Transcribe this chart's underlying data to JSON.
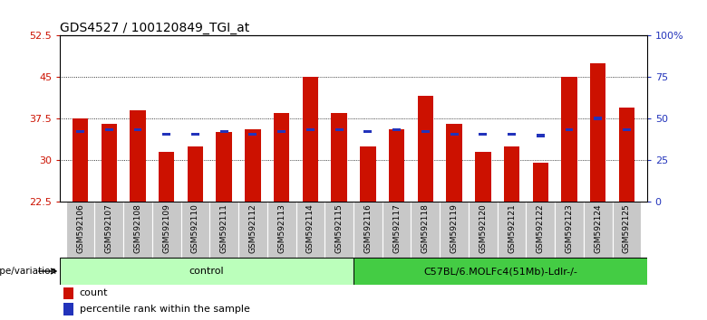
{
  "title": "GDS4527 / 100120849_TGI_at",
  "samples": [
    "GSM592106",
    "GSM592107",
    "GSM592108",
    "GSM592109",
    "GSM592110",
    "GSM592111",
    "GSM592112",
    "GSM592113",
    "GSM592114",
    "GSM592115",
    "GSM592116",
    "GSM592117",
    "GSM592118",
    "GSM592119",
    "GSM592120",
    "GSM592121",
    "GSM592122",
    "GSM592123",
    "GSM592124",
    "GSM592125"
  ],
  "count_values": [
    37.5,
    36.5,
    39.0,
    31.5,
    32.5,
    35.0,
    35.5,
    38.5,
    45.0,
    38.5,
    32.5,
    35.5,
    41.5,
    36.5,
    31.5,
    32.5,
    29.5,
    45.0,
    47.5,
    39.5
  ],
  "percentile_values": [
    35.2,
    35.5,
    35.5,
    34.7,
    34.7,
    35.2,
    34.7,
    35.2,
    35.5,
    35.5,
    35.2,
    35.5,
    35.2,
    34.7,
    34.7,
    34.7,
    34.4,
    35.5,
    37.5,
    35.5
  ],
  "ymin": 22.5,
  "ymax": 52.5,
  "yticks_left": [
    22.5,
    30.0,
    37.5,
    45.0,
    52.5
  ],
  "ytick_labels_left": [
    "22.5",
    "30",
    "37.5",
    "45",
    "52.5"
  ],
  "yticks_right_pct": [
    0,
    25,
    50,
    75,
    100
  ],
  "ytick_labels_right": [
    "0",
    "25",
    "50",
    "75",
    "100%"
  ],
  "gridlines": [
    30.0,
    37.5,
    45.0
  ],
  "bar_color": "#cc1100",
  "percentile_color": "#2233bb",
  "control_color": "#bbffbb",
  "mutant_color": "#44cc44",
  "control_label": "control",
  "mutant_label": "C57BL/6.MOLFc4(51Mb)-Ldlr-/-",
  "control_count": 10,
  "mutant_count": 10,
  "genotype_label": "genotype/variation",
  "legend_count": "count",
  "legend_percentile": "percentile rank within the sample",
  "bar_width": 0.55,
  "bg_color": "#ffffff",
  "gray_color": "#c8c8c8",
  "title_fontsize": 10,
  "axis_fontsize": 8,
  "tick_fontsize": 6.5
}
